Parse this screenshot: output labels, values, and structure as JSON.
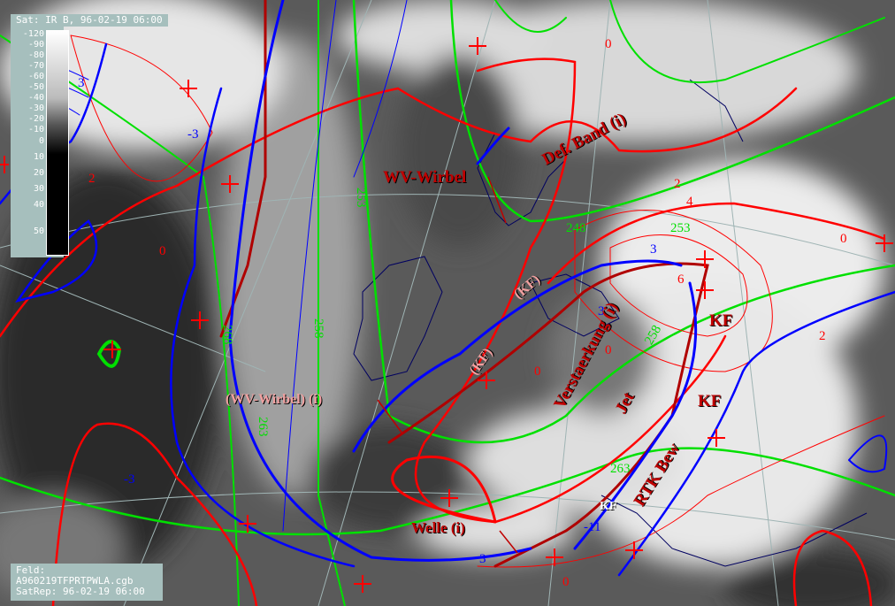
{
  "header": {
    "title": "Sat: IR  B, 96-02-19 06:00"
  },
  "legend": {
    "ticks": [
      "-120",
      "-90",
      "-80",
      "-70",
      "-60",
      "-50",
      "-40",
      "-30",
      "-20",
      "-10",
      "0",
      "10",
      "20",
      "30",
      "40",
      "50"
    ],
    "unit_hint": "brightness temperature scale"
  },
  "footer": {
    "feld_label": "Feld:",
    "file": "A960219TFPRTPWLA.cgb",
    "satrep": "SatRep: 96-02-19 06:00"
  },
  "annotations": {
    "wv_wirbel": "WV-Wirbel",
    "def_band": "Def. Band (i)",
    "wv_wirbel_i": "(WV-Wirbel) (i)",
    "welle": "Welle (i)",
    "kf_paren_1": "(KF)",
    "kf_paren_2": "(KF)",
    "kf_1": "KF",
    "kf_2": "KF",
    "kf_3": "KF",
    "jet": "Jet",
    "verstaerkung": "Verstaerkung (i)",
    "rtk_bew": "RTK Bew"
  },
  "contour_labels": {
    "green": [
      "253",
      "248",
      "253",
      "258",
      "268",
      "263",
      "258",
      "263"
    ],
    "red": [
      "0",
      "2",
      "0",
      "2",
      "4",
      "0",
      "6",
      "0",
      "0",
      "2",
      "0"
    ],
    "blue": [
      "3",
      "-3",
      "3",
      "3",
      "3",
      "-3",
      "-11"
    ]
  },
  "colors": {
    "thickness_green": "#00e000",
    "temp_red": "#ff0000",
    "blue": "#0000ff",
    "front_darkred": "#b00000",
    "coast": "#000060",
    "graticule": "#9fb4b4",
    "panel": "#a6bfbd"
  }
}
